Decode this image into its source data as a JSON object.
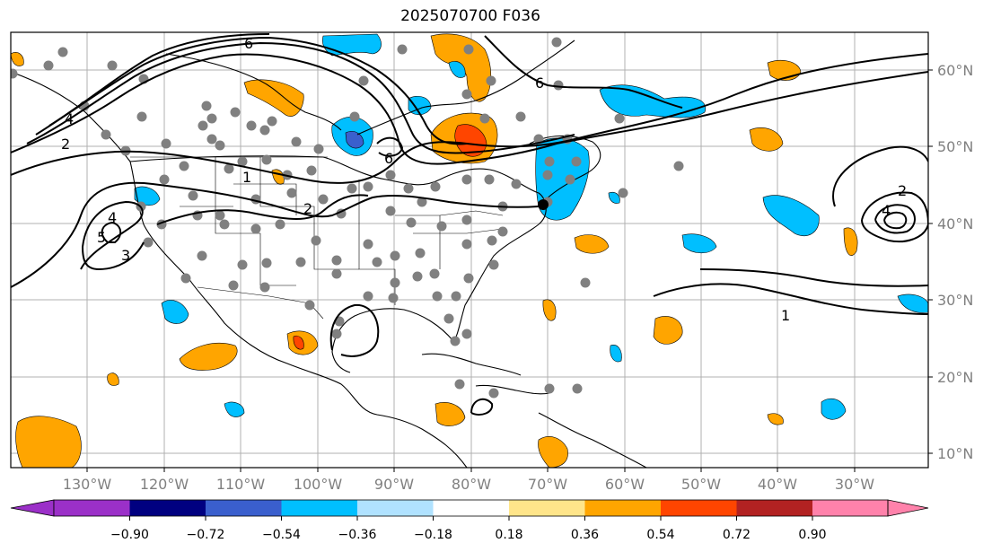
{
  "title": "2025070700 F036",
  "longitude_labels": [
    "130°W",
    "120°W",
    "110°W",
    "100°W",
    "90°W",
    "80°W",
    "70°W",
    "60°W",
    "50°W",
    "40°W",
    "30°W"
  ],
  "latitude_labels": [
    "60°N",
    "50°N",
    "40°N",
    "30°N",
    "20°N",
    "10°N"
  ],
  "contour_labels": [
    "6",
    "6",
    "6",
    "4",
    "2",
    "1",
    "2",
    "4",
    "5",
    "3",
    "1",
    "2",
    "4"
  ],
  "colorbar": {
    "tick_labels": [
      "−0.90",
      "−0.72",
      "−0.54",
      "−0.36",
      "−0.18",
      "0.18",
      "0.36",
      "0.54",
      "0.72",
      "0.90"
    ],
    "colors": [
      "#9b30c8",
      "#000080",
      "#3a5fcd",
      "#00bfff",
      "#b0e2ff",
      "#ffffff",
      "#ffe58a",
      "#ffa500",
      "#ff4500",
      "#b22222",
      "#ff82ab"
    ]
  },
  "colors": {
    "positive_shading": "#ffa500",
    "strong_positive_shading": "#ff4500",
    "negative_shading": "#00bfff",
    "strong_negative_shading": "#3a5fcd",
    "station_marker": "#808080",
    "grid": "#b0b0b0",
    "coastline": "#000000"
  }
}
